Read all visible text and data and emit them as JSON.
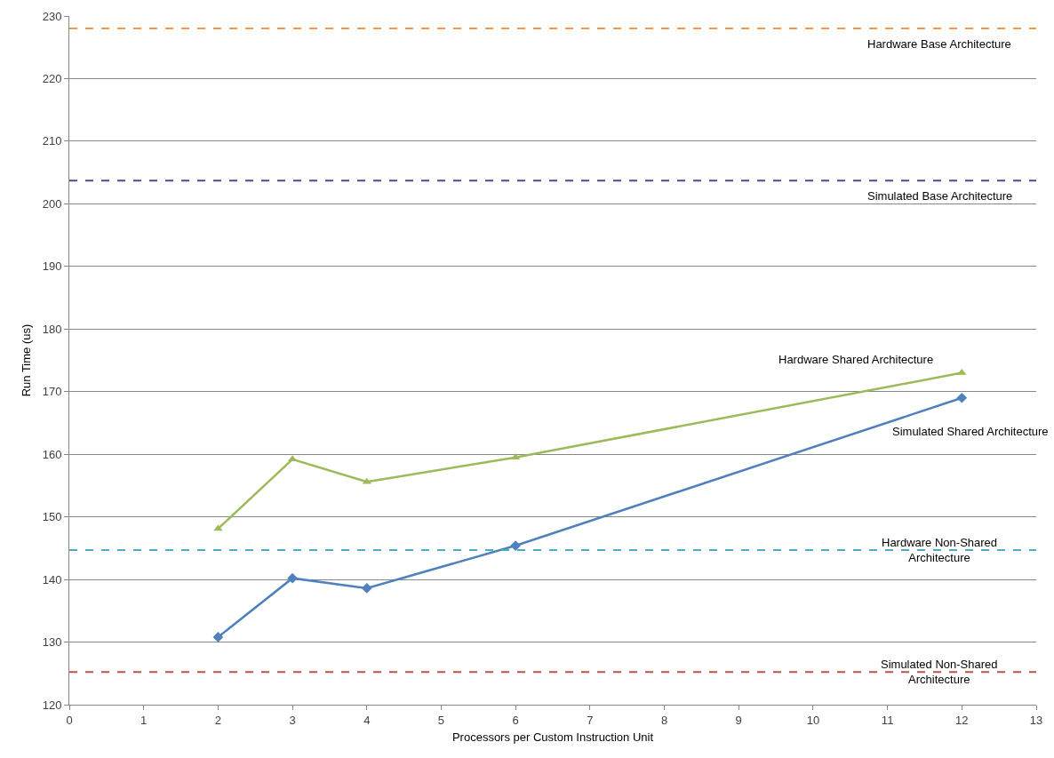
{
  "chart_data": {
    "type": "line",
    "xlabel": "Processors per Custom Instruction Unit",
    "ylabel": "Run Time (us)",
    "x": [
      2,
      3,
      4,
      6,
      12
    ],
    "series": [
      {
        "name": "Hardware Shared Architecture",
        "color": "#9bbb59",
        "marker": "triangle",
        "values": [
          148.1,
          159.2,
          155.6,
          159.5,
          173.0
        ]
      },
      {
        "name": "Simulated Shared Architecture",
        "color": "#4f81bd",
        "marker": "diamond",
        "values": [
          130.8,
          140.2,
          138.6,
          145.4,
          169.0
        ]
      }
    ],
    "xlim": [
      0,
      13
    ],
    "xticks": [
      0,
      1,
      2,
      3,
      4,
      5,
      6,
      7,
      8,
      9,
      10,
      11,
      12,
      13
    ],
    "ylim": [
      120,
      230
    ],
    "yticks": [
      120,
      130,
      140,
      150,
      160,
      170,
      180,
      190,
      200,
      210,
      220,
      230
    ],
    "grid": "y",
    "line_style": "solid",
    "ref_lines": [
      {
        "axis": "y",
        "value": 228,
        "label": "Hardware Base Architecture",
        "color": "#f79646",
        "line_style": "dashed"
      },
      {
        "axis": "y",
        "value": 203.7,
        "label": "Simulated Base Architecture",
        "color": "#4b4b8f",
        "line_style": "dashed"
      },
      {
        "axis": "y",
        "value": 144.7,
        "label": "Hardware Non-Shared\nArchitecture",
        "color": "#4bacc6",
        "line_style": "dashed"
      },
      {
        "axis": "y",
        "value": 125.2,
        "label": "Simulated Non-Shared\nArchitecture",
        "color": "#c0504d",
        "line_style": "dashed"
      }
    ]
  }
}
